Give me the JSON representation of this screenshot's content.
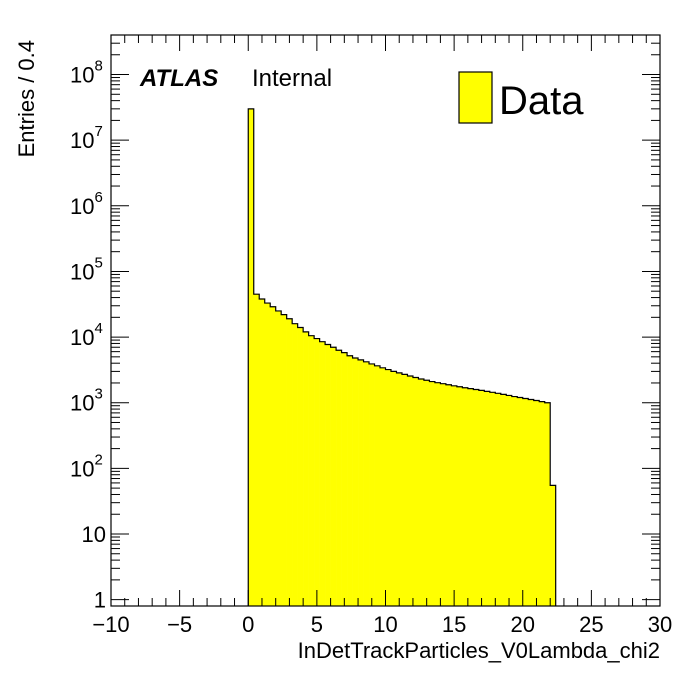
{
  "chart_data": {
    "type": "bar",
    "xlabel": "InDetTrackParticles_V0Lambda_chi2",
    "ylabel": "Entries / 0.4",
    "xlim": [
      -10,
      30
    ],
    "ylim": [
      0.8,
      400000000
    ],
    "yscale": "log",
    "x_ticks": [
      "−10",
      "−5",
      "0",
      "5",
      "10",
      "15",
      "20",
      "25",
      "30"
    ],
    "y_tick_labels": [
      "1",
      "10",
      "10",
      "10",
      "10",
      "10",
      "10",
      "10",
      "10"
    ],
    "y_tick_exponents": [
      "",
      "",
      "2",
      "3",
      "4",
      "5",
      "6",
      "7",
      "8"
    ],
    "bin_width": 0.4,
    "bin_start": 0,
    "fill_color": "#ffff00",
    "series": [
      {
        "name": "Data",
        "values": [
          30000000,
          45000,
          38000,
          33000,
          29000,
          25000,
          22000,
          19000,
          16000,
          14000,
          12000,
          10500,
          9500,
          8500,
          7700,
          7000,
          6300,
          5800,
          5200,
          4800,
          4500,
          4200,
          3900,
          3650,
          3400,
          3200,
          3000,
          2850,
          2700,
          2550,
          2420,
          2300,
          2200,
          2100,
          2020,
          1950,
          1880,
          1810,
          1750,
          1690,
          1640,
          1590,
          1540,
          1490,
          1440,
          1390,
          1340,
          1290,
          1240,
          1200,
          1160,
          1120,
          1080,
          1040,
          1000,
          55
        ]
      }
    ],
    "legend": {
      "entry": "Data",
      "position": "top-right"
    },
    "annotation": {
      "atlas": "ATLAS",
      "status": "Internal"
    },
    "grid": false
  }
}
